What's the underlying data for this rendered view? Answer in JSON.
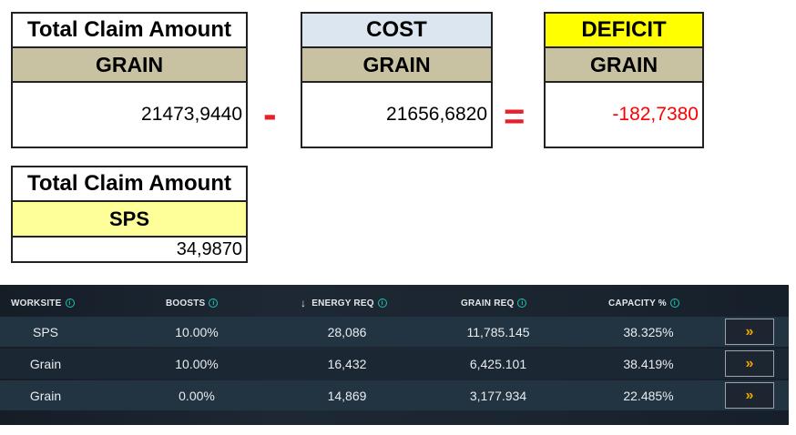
{
  "claim_grain": {
    "title": "Total Claim Amount",
    "sub": "GRAIN",
    "value": "21473,9440"
  },
  "minus_sign": "-",
  "cost_grain": {
    "title": "COST",
    "sub": "GRAIN",
    "value": "21656,6820"
  },
  "equals_sign": "=",
  "deficit_grain": {
    "title": "DEFICIT",
    "sub": "GRAIN",
    "value": "-182,7380"
  },
  "claim_sps": {
    "title": "Total Claim Amount",
    "sub": "SPS",
    "value": "34,9870"
  },
  "colors": {
    "header_tan": "#c9c2a2",
    "cost_header": "#dce6f1",
    "deficit_header": "#ffff00",
    "sps_sub": "#ffff99",
    "negative": "#ff0000",
    "operator": "#e8202a",
    "accent_gold": "#f0a400",
    "info_teal": "#1fc2b4"
  },
  "table": {
    "headers": {
      "worksite": "WORKSITE",
      "boosts": "BOOSTS",
      "energy": "ENERGY REQ",
      "grain": "GRAIN REQ",
      "capacity": "CAPACITY %"
    },
    "sort_arrow": "↓",
    "info_glyph": "i",
    "action_glyph": "»",
    "rows": [
      {
        "worksite": "SPS",
        "boosts": "10.00%",
        "energy": "28,086",
        "grain": "11,785.145",
        "capacity": "38.325%"
      },
      {
        "worksite": "Grain",
        "boosts": "10.00%",
        "energy": "16,432",
        "grain": "6,425.101",
        "capacity": "38.419%"
      },
      {
        "worksite": "Grain",
        "boosts": "0.00%",
        "energy": "14,869",
        "grain": "3,177.934",
        "capacity": "22.485%"
      }
    ]
  }
}
